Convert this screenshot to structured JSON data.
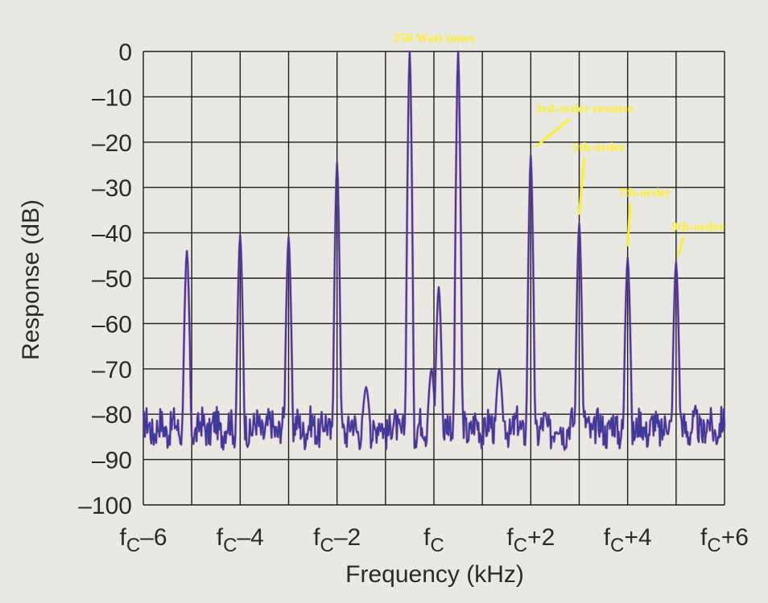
{
  "chart_data": {
    "type": "line",
    "title": "",
    "xlabel": "Frequency (kHz)",
    "ylabel": "Response (dB)",
    "xlim": [
      -6,
      6
    ],
    "ylim": [
      -100,
      0
    ],
    "grid": true,
    "x_ticks": [
      -6,
      -5,
      -4,
      -3,
      -2,
      -1,
      0,
      1,
      2,
      3,
      4,
      5,
      6
    ],
    "x_tick_labels": [
      {
        "x": -6,
        "text": "fC–6"
      },
      {
        "x": -4,
        "text": "fC–4"
      },
      {
        "x": -2,
        "text": "fC–2"
      },
      {
        "x": 0,
        "text": "fC"
      },
      {
        "x": 2,
        "text": "fC+2"
      },
      {
        "x": 4,
        "text": "fC+4"
      },
      {
        "x": 6,
        "text": "fC+6"
      }
    ],
    "y_ticks": [
      0,
      -10,
      -20,
      -30,
      -40,
      -50,
      -60,
      -70,
      -80,
      -90,
      -100
    ],
    "y_tick_labels": [
      "0",
      "–10",
      "–20",
      "–30",
      "–40",
      "–50",
      "–60",
      "–70",
      "–80",
      "–90",
      "–100"
    ],
    "series": [
      {
        "color": "#3d3a9c",
        "noise_floor_db": -83,
        "peaks": [
          {
            "x": -5.1,
            "y": -44
          },
          {
            "x": -4.0,
            "y": -40.5
          },
          {
            "x": -3.0,
            "y": -41
          },
          {
            "x": -2.0,
            "y": -24.5
          },
          {
            "x": -1.4,
            "y": -74
          },
          {
            "x": -0.5,
            "y": 0
          },
          {
            "x": -0.05,
            "y": -70
          },
          {
            "x": 0.1,
            "y": -52
          },
          {
            "x": 0.5,
            "y": 0
          },
          {
            "x": 1.35,
            "y": -70
          },
          {
            "x": 2.0,
            "y": -23
          },
          {
            "x": 3.0,
            "y": -38
          },
          {
            "x": 4.0,
            "y": -45.5
          },
          {
            "x": 5.0,
            "y": -46.5
          }
        ]
      }
    ],
    "annotations": [
      {
        "text": "250 Watt tones",
        "x": 0,
        "y": 2,
        "arrow": false
      },
      {
        "text": "3rd-order resonse",
        "x": 3.1,
        "y": -13.5,
        "arrow": true,
        "arrow_to": [
          2.1,
          -21
        ]
      },
      {
        "text": "5th-order",
        "x": 3.4,
        "y": -22,
        "arrow": true,
        "arrow_to": [
          3.0,
          -36
        ]
      },
      {
        "text": "7th-order",
        "x": 4.35,
        "y": -32,
        "arrow": true,
        "arrow_to": [
          4.0,
          -43
        ]
      },
      {
        "text": "9th-order",
        "x": 5.45,
        "y": -39.5,
        "arrow": true,
        "arrow_to": [
          5.05,
          -45
        ]
      }
    ]
  }
}
